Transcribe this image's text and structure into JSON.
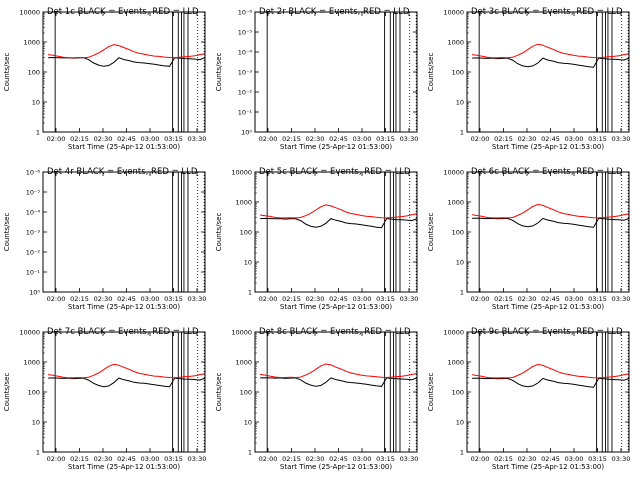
{
  "figure": {
    "background": "#ffffff",
    "axis_color": "#000000",
    "events_color": "#000000",
    "lld_color": "#ff0000"
  },
  "chart_data": [
    {
      "id": "1c",
      "type": "line",
      "title": "Det 1c BLACK = Events, RED = LLD",
      "ylabel": "Counts/sec",
      "xlabel": "Start Time (25-Apr-12 01:53:00)",
      "yscale": "log",
      "ylim": [
        1,
        10000
      ],
      "ytick_labels": [
        "1",
        "10",
        "100",
        "1000",
        "10000"
      ],
      "xtick_labels": [
        "02:00",
        "02:15",
        "02:30",
        "02:45",
        "03:00",
        "03:15",
        "03:30"
      ],
      "show_curves": true,
      "series": [
        {
          "values": [
            null,
            300,
            305,
            300,
            295,
            300,
            290,
            295,
            300,
            260,
            200,
            170,
            155,
            165,
            210,
            300,
            260,
            240,
            215,
            205,
            200,
            190,
            180,
            170,
            160,
            155,
            300,
            290,
            280,
            275,
            270,
            260,
            300
          ]
        },
        {
          "values": [
            null,
            380,
            360,
            335,
            310,
            300,
            300,
            305,
            300,
            310,
            360,
            430,
            550,
            700,
            820,
            760,
            650,
            560,
            470,
            420,
            390,
            360,
            340,
            330,
            315,
            305,
            300,
            310,
            320,
            330,
            350,
            380,
            410
          ]
        }
      ]
    },
    {
      "id": "2r",
      "type": "line",
      "title": "Det 2r BLACK = Events, RED = LLD",
      "ylabel": "Counts/sec",
      "xlabel": "Start Time (25-Apr-12 01:53:00)",
      "yscale": "log",
      "ylim": [
        1,
        1e-06
      ],
      "ytick_labels": [
        "10⁻⁶",
        "10⁻⁵",
        "10⁻⁴",
        "10⁻³",
        "10⁻²",
        "10⁻¹",
        "10⁰"
      ],
      "xtick_labels": [
        "02:00",
        "02:15",
        "02:30",
        "02:45",
        "03:00",
        "03:15",
        "03:30"
      ],
      "show_curves": false,
      "series": []
    },
    {
      "id": "3c",
      "type": "line",
      "title": "Det 3c BLACK = Events, RED = LLD",
      "ylabel": "Counts/sec",
      "xlabel": "Start Time (25-Apr-12 01:53:00)",
      "yscale": "log",
      "ylim": [
        1,
        10000
      ],
      "ytick_labels": [
        "1",
        "10",
        "100",
        "1000",
        "10000"
      ],
      "xtick_labels": [
        "02:00",
        "02:15",
        "02:30",
        "02:45",
        "03:00",
        "03:15",
        "03:30"
      ],
      "show_curves": true,
      "series": [
        {
          "values": [
            null,
            290,
            295,
            290,
            285,
            290,
            280,
            285,
            290,
            250,
            190,
            160,
            150,
            160,
            200,
            290,
            250,
            230,
            205,
            195,
            190,
            180,
            170,
            160,
            150,
            145,
            290,
            280,
            270,
            265,
            260,
            250,
            290
          ]
        },
        {
          "values": [
            null,
            380,
            360,
            335,
            310,
            300,
            300,
            305,
            300,
            310,
            360,
            430,
            560,
            720,
            850,
            780,
            660,
            570,
            480,
            420,
            390,
            360,
            340,
            330,
            315,
            305,
            300,
            310,
            320,
            330,
            350,
            380,
            410
          ]
        }
      ]
    },
    {
      "id": "4r",
      "type": "line",
      "title": "Det 4r BLACK = Events, RED = LLD",
      "ylabel": "Counts/sec",
      "xlabel": "Start Time (25-Apr-12 01:53:00)",
      "yscale": "log",
      "ylim": [
        1,
        1e-06
      ],
      "ytick_labels": [
        "10⁻⁶",
        "10⁻⁵",
        "10⁻⁴",
        "10⁻³",
        "10⁻²",
        "10⁻¹",
        "10⁰"
      ],
      "xtick_labels": [
        "02:00",
        "02:15",
        "02:30",
        "02:45",
        "03:00",
        "03:15",
        "03:30"
      ],
      "show_curves": false,
      "series": []
    },
    {
      "id": "5c",
      "type": "line",
      "title": "Det 5c BLACK = Events, RED = LLD",
      "ylabel": "Counts/sec",
      "xlabel": "Start Time (25-Apr-12 01:53:00)",
      "yscale": "log",
      "ylim": [
        1,
        10000
      ],
      "ytick_labels": [
        "1",
        "10",
        "100",
        "1000",
        "10000"
      ],
      "xtick_labels": [
        "02:00",
        "02:15",
        "02:30",
        "02:45",
        "03:00",
        "03:15",
        "03:30"
      ],
      "show_curves": true,
      "series": [
        {
          "values": [
            null,
            280,
            285,
            280,
            275,
            280,
            270,
            275,
            280,
            240,
            185,
            155,
            145,
            155,
            195,
            280,
            245,
            225,
            200,
            190,
            185,
            175,
            165,
            155,
            145,
            140,
            280,
            270,
            260,
            255,
            250,
            240,
            280
          ]
        },
        {
          "values": [
            null,
            370,
            350,
            330,
            305,
            295,
            295,
            300,
            295,
            305,
            350,
            420,
            540,
            690,
            800,
            740,
            640,
            550,
            465,
            410,
            385,
            355,
            335,
            325,
            310,
            300,
            295,
            305,
            315,
            325,
            345,
            375,
            405
          ]
        }
      ]
    },
    {
      "id": "6c",
      "type": "line",
      "title": "Det 6c BLACK = Events, RED = LLD",
      "ylabel": "Counts/sec",
      "xlabel": "Start Time (25-Apr-12 01:53:00)",
      "yscale": "log",
      "ylim": [
        1,
        10000
      ],
      "ytick_labels": [
        "1",
        "10",
        "100",
        "1000",
        "10000"
      ],
      "xtick_labels": [
        "02:00",
        "02:15",
        "02:30",
        "02:45",
        "03:00",
        "03:15",
        "03:30"
      ],
      "show_curves": true,
      "series": [
        {
          "values": [
            null,
            285,
            290,
            285,
            280,
            285,
            275,
            280,
            285,
            245,
            190,
            160,
            150,
            160,
            200,
            285,
            250,
            230,
            205,
            195,
            190,
            180,
            170,
            160,
            150,
            145,
            285,
            275,
            265,
            260,
            255,
            245,
            285
          ]
        },
        {
          "values": [
            null,
            375,
            355,
            330,
            305,
            295,
            295,
            300,
            295,
            305,
            355,
            425,
            550,
            710,
            830,
            770,
            650,
            560,
            470,
            415,
            385,
            355,
            335,
            325,
            310,
            300,
            295,
            305,
            315,
            325,
            345,
            375,
            405
          ]
        }
      ]
    },
    {
      "id": "7c",
      "type": "line",
      "title": "Det 7c BLACK = Events, RED = LLD",
      "ylabel": "Counts/sec",
      "xlabel": "Start Time (25-Apr-12 01:53:00)",
      "yscale": "log",
      "ylim": [
        1,
        10000
      ],
      "ytick_labels": [
        "1",
        "10",
        "100",
        "1000",
        "10000"
      ],
      "xtick_labels": [
        "02:00",
        "02:15",
        "02:30",
        "02:45",
        "03:00",
        "03:15",
        "03:30"
      ],
      "show_curves": true,
      "series": [
        {
          "values": [
            null,
            290,
            295,
            290,
            285,
            290,
            280,
            285,
            290,
            250,
            195,
            165,
            150,
            160,
            205,
            290,
            255,
            235,
            210,
            200,
            195,
            185,
            175,
            165,
            155,
            150,
            290,
            280,
            270,
            265,
            260,
            250,
            290
          ]
        },
        {
          "values": [
            null,
            380,
            360,
            335,
            310,
            300,
            300,
            305,
            300,
            310,
            360,
            430,
            560,
            720,
            840,
            780,
            660,
            570,
            480,
            420,
            390,
            360,
            340,
            330,
            315,
            305,
            300,
            310,
            320,
            330,
            350,
            380,
            410
          ]
        }
      ]
    },
    {
      "id": "8c",
      "type": "line",
      "title": "Det 8c BLACK = Events, RED = LLD",
      "ylabel": "Counts/sec",
      "xlabel": "Start Time (25-Apr-12 01:53:00)",
      "yscale": "log",
      "ylim": [
        1,
        10000
      ],
      "ytick_labels": [
        "1",
        "10",
        "100",
        "1000",
        "10000"
      ],
      "xtick_labels": [
        "02:00",
        "02:15",
        "02:30",
        "02:45",
        "03:00",
        "03:15",
        "03:30"
      ],
      "show_curves": true,
      "series": [
        {
          "values": [
            null,
            295,
            300,
            295,
            290,
            295,
            285,
            290,
            295,
            255,
            200,
            170,
            155,
            165,
            210,
            295,
            260,
            240,
            215,
            205,
            200,
            190,
            180,
            170,
            160,
            155,
            295,
            285,
            275,
            270,
            265,
            255,
            295
          ]
        },
        {
          "values": [
            null,
            385,
            365,
            340,
            315,
            305,
            305,
            310,
            305,
            315,
            365,
            440,
            570,
            740,
            860,
            800,
            670,
            580,
            490,
            430,
            395,
            365,
            345,
            335,
            320,
            310,
            305,
            315,
            325,
            335,
            355,
            385,
            415
          ]
        }
      ]
    },
    {
      "id": "9c",
      "type": "line",
      "title": "Det 9c BLACK = Events, RED = LLD",
      "ylabel": "Counts/sec",
      "xlabel": "Start Time (25-Apr-12 01:53:00)",
      "yscale": "log",
      "ylim": [
        1,
        10000
      ],
      "ytick_labels": [
        "1",
        "10",
        "100",
        "1000",
        "10000"
      ],
      "xtick_labels": [
        "02:00",
        "02:15",
        "02:30",
        "02:45",
        "03:00",
        "03:15",
        "03:30"
      ],
      "show_curves": true,
      "series": [
        {
          "values": [
            null,
            285,
            290,
            285,
            280,
            285,
            275,
            280,
            285,
            245,
            190,
            160,
            150,
            160,
            200,
            285,
            250,
            230,
            205,
            195,
            190,
            180,
            170,
            160,
            150,
            145,
            285,
            275,
            265,
            260,
            255,
            245,
            285
          ]
        },
        {
          "values": [
            null,
            375,
            355,
            330,
            305,
            295,
            295,
            300,
            295,
            305,
            355,
            425,
            550,
            710,
            830,
            770,
            650,
            560,
            470,
            415,
            385,
            355,
            335,
            325,
            310,
            300,
            295,
            305,
            315,
            325,
            345,
            375,
            405
          ]
        }
      ]
    }
  ]
}
